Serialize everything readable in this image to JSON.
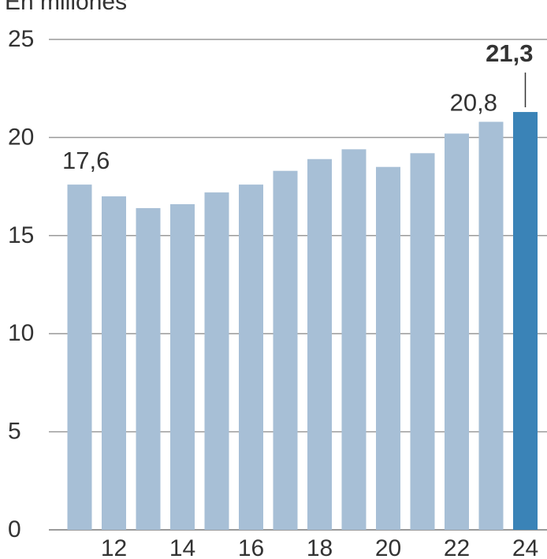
{
  "chart_data": {
    "type": "bar",
    "unit_label": "En millones",
    "categories": [
      "11",
      "12",
      "13",
      "14",
      "15",
      "16",
      "17",
      "18",
      "19",
      "20",
      "21",
      "22",
      "23",
      "24"
    ],
    "values": [
      17.6,
      17.0,
      16.4,
      16.6,
      17.2,
      17.6,
      18.3,
      18.9,
      19.4,
      18.5,
      19.2,
      20.2,
      20.8,
      21.3
    ],
    "x_tick_labels": [
      "12",
      "14",
      "16",
      "18",
      "20",
      "22",
      "24"
    ],
    "y_ticks": [
      "0",
      "5",
      "10",
      "15",
      "20",
      "25"
    ],
    "ylim": [
      0,
      25
    ],
    "grid": true,
    "annotations": [
      {
        "category": "11",
        "text": "17,6",
        "bold": false
      },
      {
        "category": "23",
        "text": "20,8",
        "bold": false
      },
      {
        "category": "24",
        "text": "21,3",
        "bold": true
      }
    ],
    "colors": {
      "bar": "#a7bfd6",
      "highlight_bar": "#3a83b7",
      "grid": "#9a9a9a",
      "text": "#333333"
    },
    "highlight_category": "24"
  }
}
